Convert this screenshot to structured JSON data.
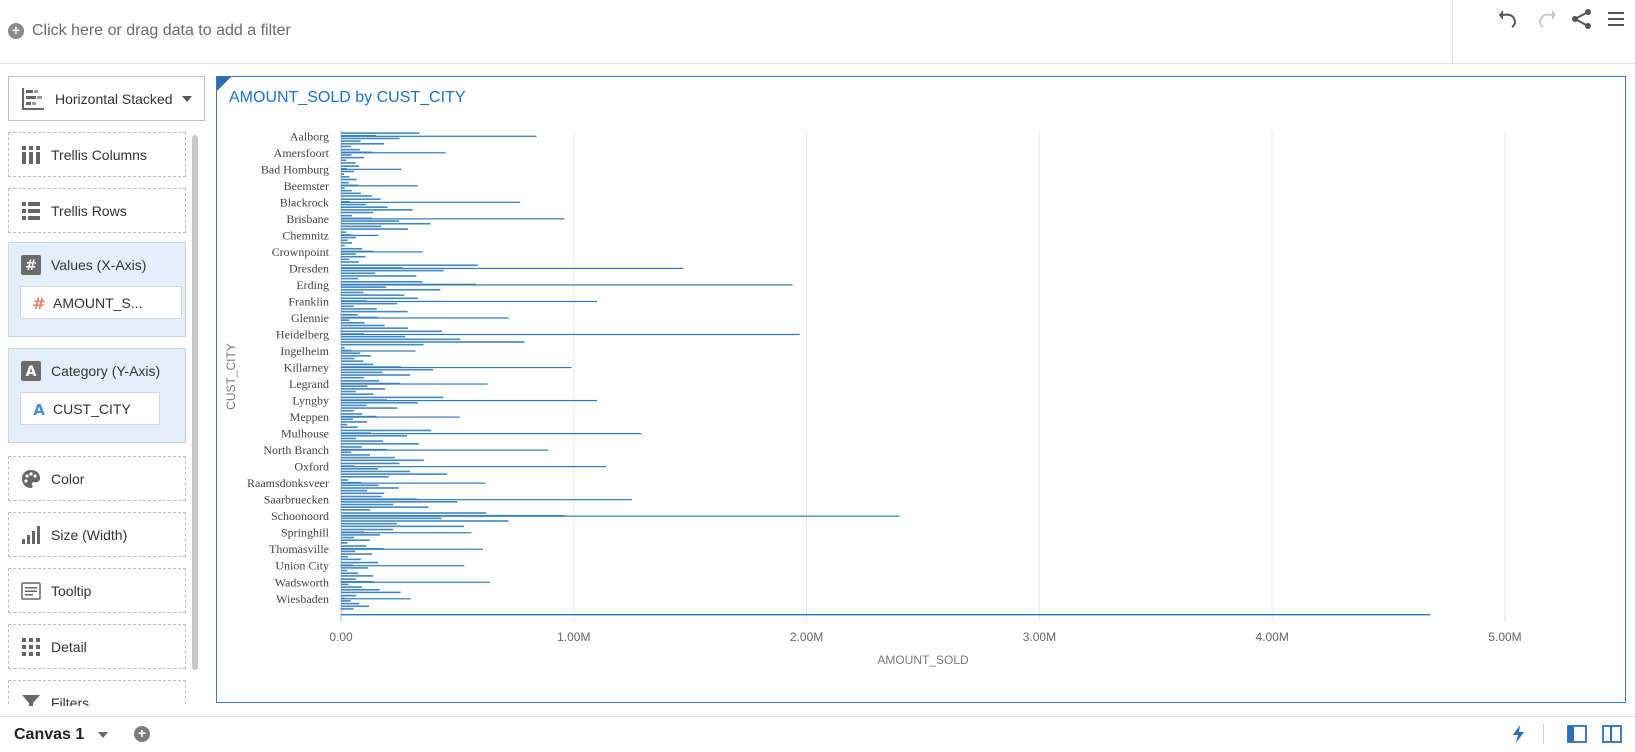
{
  "filter_bar": {
    "add_filter_text": "Click here or drag data to add a filter",
    "icons": [
      "undo-icon",
      "redo-icon",
      "share-icon",
      "menu-icon"
    ]
  },
  "chart_type": {
    "label": "Horizontal Stacked",
    "icon": "horizontal-stacked-bar-icon"
  },
  "grammar": {
    "trellis_columns": "Trellis Columns",
    "trellis_rows": "Trellis Rows",
    "values_x": "Values (X-Axis)",
    "values_x_item": "AMOUNT_S...",
    "category_y": "Category (Y-Axis)",
    "category_y_item": "CUST_CITY",
    "color": "Color",
    "size": "Size (Width)",
    "tooltip": "Tooltip",
    "detail": "Detail",
    "filters": "Filters"
  },
  "colors": {
    "bar": "#2e7ab8",
    "accent": "#1a73c4",
    "zone_fill": "#e4eef8"
  },
  "chart_data": {
    "type": "bar",
    "orientation": "horizontal",
    "title": "AMOUNT_SOLD by CUST_CITY",
    "xlabel": "AMOUNT_SOLD",
    "ylabel": "CUST_CITY",
    "xlim": [
      0,
      5000000
    ],
    "xticks": [
      "0.00",
      "1.00M",
      "2.00M",
      "3.00M",
      "4.00M",
      "5.00M"
    ],
    "grid": true,
    "categories": [
      "Aalborg",
      "Amersfoort",
      "Bad Homburg",
      "Beemster",
      "Blackrock",
      "Brisbane",
      "Chemnitz",
      "Crownpoint",
      "Dresden",
      "Erding",
      "Franklin",
      "Glennie",
      "Heidelberg",
      "Ingelheim",
      "Killarney",
      "Legrand",
      "Lyngby",
      "Meppen",
      "Mulhouse",
      "North Branch",
      "Oxford",
      "Raamsdonksveer",
      "Saarbruecken",
      "Schoonoord",
      "Springhill",
      "Thomasville",
      "Union City",
      "Wadsworth",
      "Wiesbaden"
    ],
    "values": [
      840000,
      450000,
      260000,
      330000,
      770000,
      960000,
      160000,
      350000,
      1470000,
      1940000,
      1100000,
      720000,
      1970000,
      320000,
      990000,
      630000,
      1100000,
      510000,
      1290000,
      890000,
      1140000,
      620000,
      1250000,
      2400000,
      560000,
      610000,
      530000,
      640000,
      300000
    ],
    "outlier_bar": 4680000
  },
  "bottom": {
    "canvas_name": "Canvas 1"
  }
}
